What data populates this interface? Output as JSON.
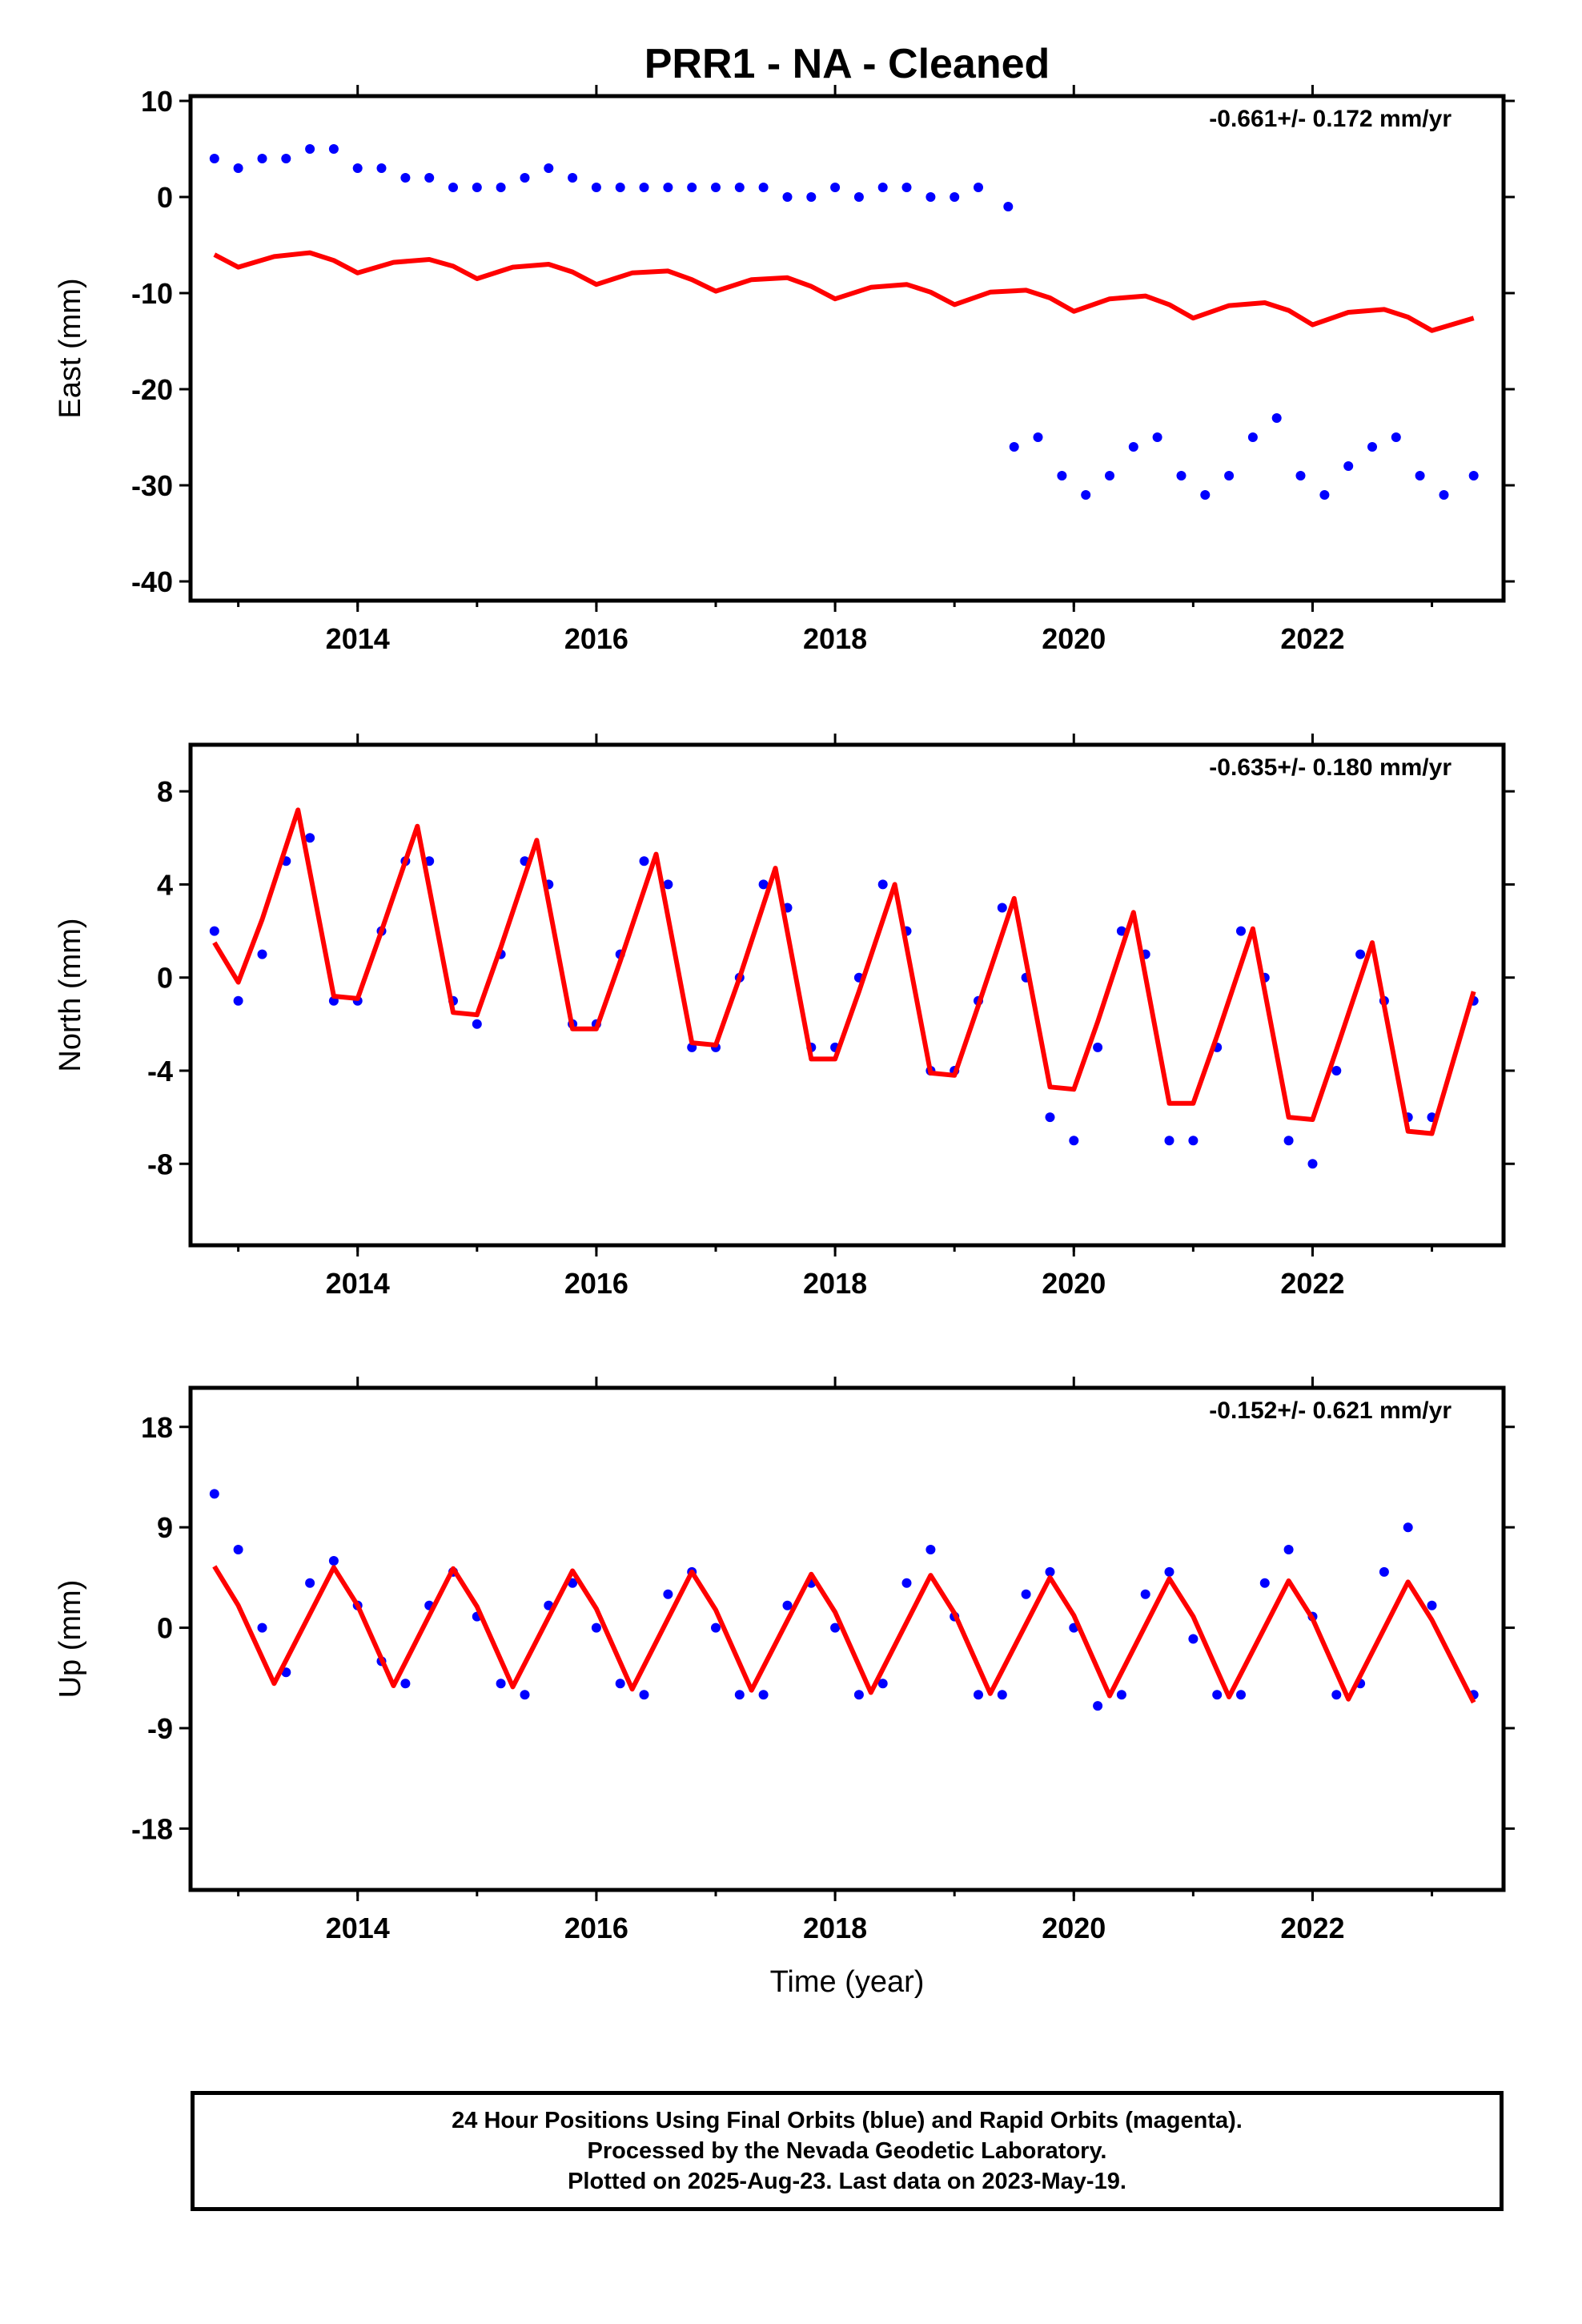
{
  "page_title": "PRR1  - NA - Cleaned",
  "xlabel": "Time (year)",
  "footer": {
    "line1": "24 Hour Positions Using Final Orbits (blue) and Rapid Orbits (magenta).",
    "line2": "Processed by the Nevada Geodetic Laboratory.",
    "line3": "Plotted on 2025-Aug-23. Last data on 2023-May-19."
  },
  "colors": {
    "data": "#0000ff",
    "model": "#ff0000",
    "frame": "#000000"
  },
  "chart_data": [
    {
      "type": "scatter",
      "id": "east",
      "ylabel": "East (mm)",
      "rate_label": "-0.661+/- 0.172 mm/yr",
      "xlim": [
        2012.6,
        2023.6
      ],
      "ylim": [
        -42,
        10.5
      ],
      "xticks": [
        "2014",
        "2016",
        "2018",
        "2020",
        "2022"
      ],
      "yticks": [
        "10",
        "0",
        "-10",
        "-20",
        "-30",
        "-40"
      ],
      "series": [
        {
          "kind": "observed",
          "x": [
            2012.8,
            2013.0,
            2013.2,
            2013.4,
            2013.6,
            2013.8,
            2014.0,
            2014.2,
            2014.4,
            2014.6,
            2014.8,
            2015.0,
            2015.2,
            2015.4,
            2015.6,
            2015.8,
            2016.0,
            2016.2,
            2016.4,
            2016.6,
            2016.8,
            2017.0,
            2017.2,
            2017.4,
            2017.6,
            2017.8,
            2018.0,
            2018.2,
            2018.4,
            2018.6,
            2018.8,
            2019.0,
            2019.2,
            2019.45,
            2019.5,
            2019.7,
            2019.9,
            2020.1,
            2020.3,
            2020.5,
            2020.7,
            2020.9,
            2021.1,
            2021.3,
            2021.5,
            2021.7,
            2021.9,
            2022.1,
            2022.3,
            2022.5,
            2022.7,
            2022.9,
            2023.1,
            2023.35
          ],
          "y": [
            4,
            3,
            4,
            4,
            5,
            5,
            3,
            3,
            2,
            2,
            1,
            1,
            1,
            2,
            3,
            2,
            1,
            1,
            1,
            1,
            1,
            1,
            1,
            1,
            0,
            0,
            1,
            0,
            1,
            1,
            0,
            0,
            1,
            -1,
            -26,
            -25,
            -29,
            -31,
            -29,
            -26,
            -25,
            -29,
            -31,
            -29,
            -25,
            -23,
            -29,
            -31,
            -28,
            -26,
            -25,
            -29,
            -31,
            -29
          ]
        },
        {
          "kind": "model",
          "x": [
            2012.8,
            2013.0,
            2013.3,
            2013.6,
            2013.8,
            2014.0,
            2014.3,
            2014.6,
            2014.8,
            2015.0,
            2015.3,
            2015.6,
            2015.8,
            2016.0,
            2016.3,
            2016.6,
            2016.8,
            2017.0,
            2017.3,
            2017.6,
            2017.8,
            2018.0,
            2018.3,
            2018.6,
            2018.8,
            2019.0,
            2019.3,
            2019.6,
            2019.8,
            2020.0,
            2020.3,
            2020.6,
            2020.8,
            2021.0,
            2021.3,
            2021.6,
            2021.8,
            2022.0,
            2022.3,
            2022.6,
            2022.8,
            2023.0,
            2023.35
          ],
          "y": [
            -6,
            -7.3,
            -6.2,
            -5.8,
            -6.6,
            -7.9,
            -6.8,
            -6.5,
            -7.2,
            -8.5,
            -7.3,
            -7.0,
            -7.8,
            -9.1,
            -7.9,
            -7.7,
            -8.6,
            -9.8,
            -8.6,
            -8.4,
            -9.3,
            -10.6,
            -9.4,
            -9.1,
            -9.9,
            -11.2,
            -9.9,
            -9.7,
            -10.5,
            -11.9,
            -10.6,
            -10.3,
            -11.2,
            -12.6,
            -11.3,
            -11.0,
            -11.8,
            -13.3,
            -12.0,
            -11.7,
            -12.5,
            -13.9,
            -12.6
          ]
        }
      ]
    },
    {
      "type": "scatter",
      "id": "north",
      "ylabel": "North (mm)",
      "rate_label": "-0.635+/- 0.180 mm/yr",
      "xlim": [
        2012.6,
        2023.6
      ],
      "ylim": [
        -11.5,
        10
      ],
      "xticks": [
        "2014",
        "2016",
        "2018",
        "2020",
        "2022"
      ],
      "yticks": [
        "8",
        "4",
        "0",
        "-4",
        "-8"
      ],
      "series": [
        {
          "kind": "observed",
          "x": [
            2012.8,
            2013.0,
            2013.2,
            2013.4,
            2013.6,
            2013.8,
            2014.0,
            2014.2,
            2014.4,
            2014.6,
            2014.8,
            2015.0,
            2015.2,
            2015.4,
            2015.6,
            2015.8,
            2016.0,
            2016.2,
            2016.4,
            2016.6,
            2016.8,
            2017.0,
            2017.2,
            2017.4,
            2017.6,
            2017.8,
            2018.0,
            2018.2,
            2018.4,
            2018.6,
            2018.8,
            2019.0,
            2019.2,
            2019.4,
            2019.6,
            2019.8,
            2020.0,
            2020.2,
            2020.4,
            2020.6,
            2020.8,
            2021.0,
            2021.2,
            2021.4,
            2021.6,
            2021.8,
            2022.0,
            2022.2,
            2022.4,
            2022.6,
            2022.8,
            2023.0,
            2023.35
          ],
          "y": [
            2,
            -1,
            1,
            5,
            6,
            -1,
            -1,
            2,
            5,
            5,
            -1,
            -2,
            1,
            5,
            4,
            -2,
            -2,
            1,
            5,
            4,
            -3,
            -3,
            0,
            4,
            3,
            -3,
            -3,
            0,
            4,
            2,
            -4,
            -4,
            -1,
            3,
            0,
            -6,
            -7,
            -3,
            2,
            1,
            -7,
            -7,
            -3,
            2,
            0,
            -7,
            -8,
            -4,
            1,
            -1,
            -6,
            -6,
            -1
          ]
        },
        {
          "kind": "model",
          "x": [
            2012.8,
            2013.0,
            2013.2,
            2013.5,
            2013.8,
            2014.0,
            2014.2,
            2014.5,
            2014.8,
            2015.0,
            2015.2,
            2015.5,
            2015.8,
            2016.0,
            2016.2,
            2016.5,
            2016.8,
            2017.0,
            2017.2,
            2017.5,
            2017.8,
            2018.0,
            2018.2,
            2018.5,
            2018.8,
            2019.0,
            2019.2,
            2019.5,
            2019.8,
            2020.0,
            2020.2,
            2020.5,
            2020.8,
            2021.0,
            2021.2,
            2021.5,
            2021.8,
            2022.0,
            2022.2,
            2022.5,
            2022.8,
            2023.0,
            2023.35
          ],
          "y": [
            1.5,
            -0.2,
            2.5,
            7.2,
            -0.8,
            -0.9,
            2.0,
            6.5,
            -1.5,
            -1.6,
            1.3,
            5.9,
            -2.2,
            -2.2,
            0.7,
            5.3,
            -2.8,
            -2.9,
            0.0,
            4.7,
            -3.5,
            -3.5,
            -0.6,
            4.0,
            -4.1,
            -4.2,
            -1.2,
            3.4,
            -4.7,
            -4.8,
            -1.9,
            2.8,
            -5.4,
            -5.4,
            -2.5,
            2.1,
            -6.0,
            -6.1,
            -3.1,
            1.5,
            -6.6,
            -6.7,
            -0.6
          ]
        }
      ]
    },
    {
      "type": "scatter",
      "id": "up",
      "ylabel": "Up (mm)",
      "rate_label": "-0.152+/- 0.621 mm/yr",
      "xlim": [
        2012.6,
        2023.6
      ],
      "ylim": [
        -23.5,
        21.5
      ],
      "xticks": [
        "2014",
        "2016",
        "2018",
        "2020",
        "2022"
      ],
      "yticks": [
        "18",
        "9",
        "0",
        "-9",
        "-18"
      ],
      "series": [
        {
          "kind": "observed",
          "x": [
            2012.8,
            2013.0,
            2013.2,
            2013.4,
            2013.6,
            2013.8,
            2014.0,
            2014.2,
            2014.4,
            2014.6,
            2014.8,
            2015.0,
            2015.2,
            2015.4,
            2015.6,
            2015.8,
            2016.0,
            2016.2,
            2016.4,
            2016.6,
            2016.8,
            2017.0,
            2017.2,
            2017.4,
            2017.6,
            2017.8,
            2018.0,
            2018.2,
            2018.4,
            2018.6,
            2018.8,
            2019.0,
            2019.2,
            2019.4,
            2019.6,
            2019.8,
            2020.0,
            2020.2,
            2020.4,
            2020.6,
            2020.8,
            2021.0,
            2021.2,
            2021.4,
            2021.6,
            2021.8,
            2022.0,
            2022.2,
            2022.4,
            2022.6,
            2022.8,
            2023.0,
            2023.35
          ],
          "y": [
            12,
            7,
            0,
            -4,
            4,
            6,
            2,
            -3,
            -5,
            2,
            5,
            1,
            -5,
            -6,
            2,
            4,
            0,
            -5,
            -6,
            3,
            5,
            0,
            -6,
            -6,
            2,
            4,
            0,
            -6,
            -5,
            4,
            7,
            1,
            -6,
            -6,
            3,
            5,
            0,
            -7,
            -6,
            3,
            5,
            -1,
            -6,
            -6,
            4,
            7,
            1,
            -6,
            -5,
            5,
            9,
            2,
            -6
          ]
        },
        {
          "kind": "model",
          "x": [
            2012.8,
            2013.0,
            2013.3,
            2013.8,
            2014.0,
            2014.3,
            2014.8,
            2015.0,
            2015.3,
            2015.8,
            2016.0,
            2016.3,
            2016.8,
            2017.0,
            2017.3,
            2017.8,
            2018.0,
            2018.3,
            2018.8,
            2019.0,
            2019.3,
            2019.8,
            2020.0,
            2020.3,
            2020.8,
            2021.0,
            2021.3,
            2021.8,
            2022.0,
            2022.3,
            2022.8,
            2023.0,
            2023.35
          ],
          "y": [
            5.5,
            2.0,
            -5.0,
            5.4,
            2.0,
            -5.2,
            5.3,
            1.9,
            -5.3,
            5.1,
            1.7,
            -5.5,
            5.0,
            1.6,
            -5.6,
            4.8,
            1.4,
            -5.8,
            4.7,
            1.3,
            -5.9,
            4.5,
            1.1,
            -6.1,
            4.4,
            1.0,
            -6.2,
            4.2,
            0.8,
            -6.4,
            4.1,
            0.7,
            -6.7
          ]
        }
      ]
    }
  ]
}
